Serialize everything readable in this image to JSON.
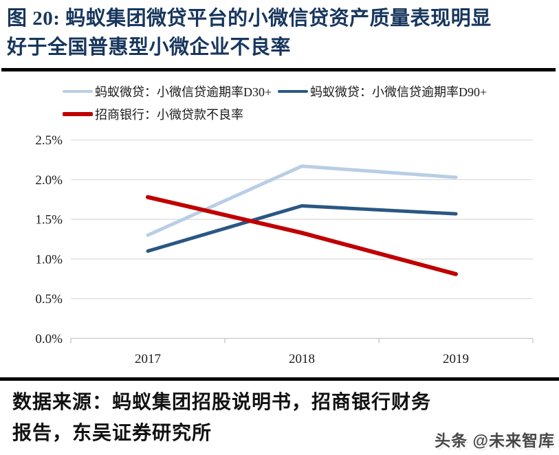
{
  "figure": {
    "title_line1": "图 20: 蚂蚁集团微贷平台的小微信贷资产质量表现明显",
    "title_line2": "好于全国普惠型小微企业不良率",
    "title_color": "#17365d",
    "source_text": "数据来源：蚂蚁集团招股说明书，招商银行财务报告，东吴证券研究所",
    "watermark": "头条 @未来智库"
  },
  "chart_data": {
    "type": "line",
    "categories": [
      "2017",
      "2018",
      "2019"
    ],
    "series": [
      {
        "name": "蚂蚁微贷：小微信贷逾期率D30+",
        "color": "#b9cde6",
        "values": [
          1.3,
          2.17,
          2.03
        ]
      },
      {
        "name": "蚂蚁微贷：小微信贷逾期率D90+",
        "color": "#2a5783",
        "values": [
          1.1,
          1.67,
          1.57
        ]
      },
      {
        "name": "招商银行：小微贷款不良率",
        "color": "#c00000",
        "values": [
          1.78,
          1.33,
          0.81
        ]
      }
    ],
    "ylim": [
      0,
      2.5
    ],
    "yticks": [
      "0.0%",
      "0.5%",
      "1.0%",
      "1.5%",
      "2.0%",
      "2.5%"
    ],
    "grid": true,
    "gridline_color": "#d9d9d9",
    "axis_color": "#bfbfbf",
    "legend_position": "top",
    "xlabel": "",
    "ylabel": ""
  }
}
